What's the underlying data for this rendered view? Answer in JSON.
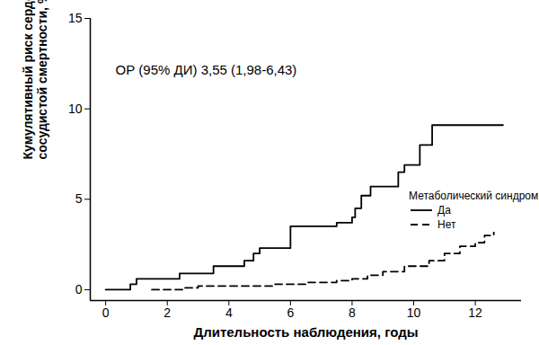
{
  "chart_data": {
    "type": "line",
    "annotation": "ОР (95% ДИ) 3,55 (1,98-6,43)",
    "x_label": "Длительность наблюдения, годы",
    "y_label": "Кумулятивный риск сердечно-\nсосудистой смертности, %",
    "legend_title": "Метаболический синдром",
    "legend": "right",
    "grid": false,
    "xlim": [
      -0.5,
      13.5
    ],
    "xticks": [
      0,
      2,
      4,
      6,
      8,
      10,
      12
    ],
    "ylim": [
      -0.6,
      15
    ],
    "yticks": [
      0,
      5,
      10,
      15
    ],
    "series": [
      {
        "name": "Да",
        "color": "#000000",
        "line_style": "solid",
        "x": [
          0,
          0.8,
          1.0,
          2.4,
          3.5,
          4.5,
          4.8,
          5.0,
          6.0,
          7.5,
          8.0,
          8.1,
          8.3,
          8.6,
          9.5,
          9.7,
          10.2,
          10.6,
          12.9
        ],
        "values": [
          0,
          0.3,
          0.6,
          0.9,
          1.3,
          1.6,
          2.0,
          2.3,
          3.5,
          3.7,
          4.0,
          4.5,
          5.2,
          5.7,
          6.5,
          6.9,
          8.0,
          9.1,
          9.1
        ]
      },
      {
        "name": "Нет",
        "color": "#000000",
        "line_style": "dashed",
        "x": [
          1.5,
          2.5,
          3.0,
          5.5,
          6.5,
          7.5,
          8.0,
          8.5,
          9.0,
          9.7,
          10.5,
          11.0,
          11.5,
          12.0,
          12.3,
          12.6,
          13.0
        ],
        "values": [
          0,
          0.1,
          0.2,
          0.3,
          0.4,
          0.5,
          0.6,
          0.8,
          1.0,
          1.3,
          1.6,
          2.0,
          2.4,
          2.6,
          3.0,
          3.3,
          3.3
        ]
      }
    ]
  }
}
